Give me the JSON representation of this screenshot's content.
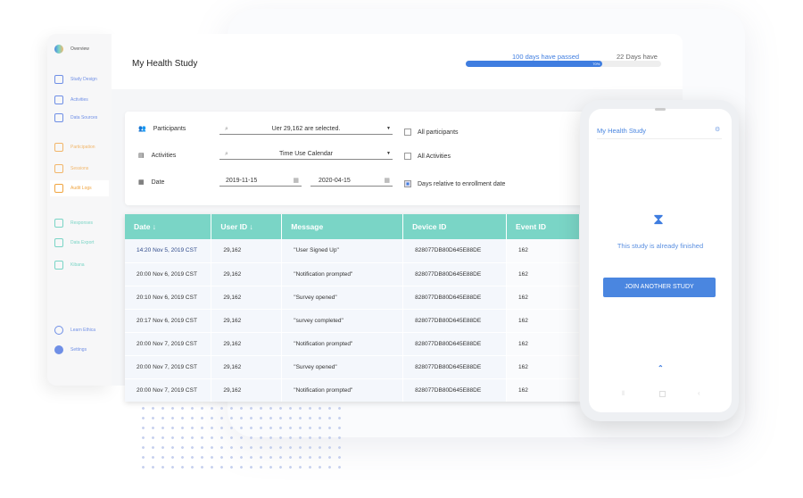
{
  "sidebar": {
    "items": [
      {
        "label": "Overview",
        "color": "#555"
      },
      {
        "label": "Study Design",
        "color": "#6f8fe6"
      },
      {
        "label": "Activities",
        "color": "#6f8fe6"
      },
      {
        "label": "Data Sources",
        "color": "#6f8fe6"
      },
      {
        "label": "Participation",
        "color": "#f2b66a"
      },
      {
        "label": "Sessions",
        "color": "#f2b66a"
      },
      {
        "label": "Audit Logs",
        "color": "#f0a540"
      },
      {
        "label": "Responses",
        "color": "#7ad5c6"
      },
      {
        "label": "Data Export",
        "color": "#7ad5c6"
      },
      {
        "label": "Kibana",
        "color": "#7ad5c6"
      },
      {
        "label": "Learn Ethica",
        "color": "#6f8fe6"
      },
      {
        "label": "Settings",
        "color": "#6f8fe6"
      }
    ]
  },
  "header": {
    "title": "My Health Study",
    "progress_label": "100 days have passed",
    "remaining_label": "22 Days have",
    "progress_percent": 70,
    "progress_text": "70%"
  },
  "filters": {
    "participants_label": "Participants",
    "participants_value": "Uer 29,162 are selected.",
    "activities_label": "Activities",
    "activities_value": "Time Use Calendar",
    "date_label": "Date",
    "date_from": "2019-11-15",
    "date_to": "2020-04-15",
    "all_participants": "All participants",
    "all_activities": "All Activities",
    "relative_days": "Days relative to enrollment date"
  },
  "table": {
    "headers": [
      "Date ↓",
      "User ID ↓",
      "Message",
      "Device ID",
      "Event ID"
    ],
    "rows": [
      [
        "14:20 Nov 5, 2019 CST",
        "29,162",
        "\"User Signed Up\"",
        "828077DB80D645E88DE",
        "162"
      ],
      [
        "20:00 Nov 6, 2019 CST",
        "29,162",
        "\"Notification prompted\"",
        "828077DB80D645E88DE",
        "162"
      ],
      [
        "20:10 Nov 6, 2019 CST",
        "29,162",
        "\"Survey opened\"",
        "828077DB80D645E88DE",
        "162"
      ],
      [
        "20:17 Nov 6, 2019 CST",
        "29,162",
        "\"survey completed\"",
        "828077DB80D645E88DE",
        "162"
      ],
      [
        "20:00 Nov 7, 2019 CST",
        "29,162",
        "\"Notification prompted\"",
        "828077DB80D645E88DE",
        "162"
      ],
      [
        "20:00 Nov 7, 2019 CST",
        "29,162",
        "\"Survey opened\"",
        "828077DB80D645E88DE",
        "162"
      ],
      [
        "20:00 Nov 7, 2019 CST",
        "29,162",
        "\"Notification prompted\"",
        "828077DB80D645E88DE",
        "162"
      ]
    ]
  },
  "phone": {
    "title": "My Health Study",
    "message": "This study is already finished",
    "button": "JOIN ANOTHER STUDY"
  }
}
